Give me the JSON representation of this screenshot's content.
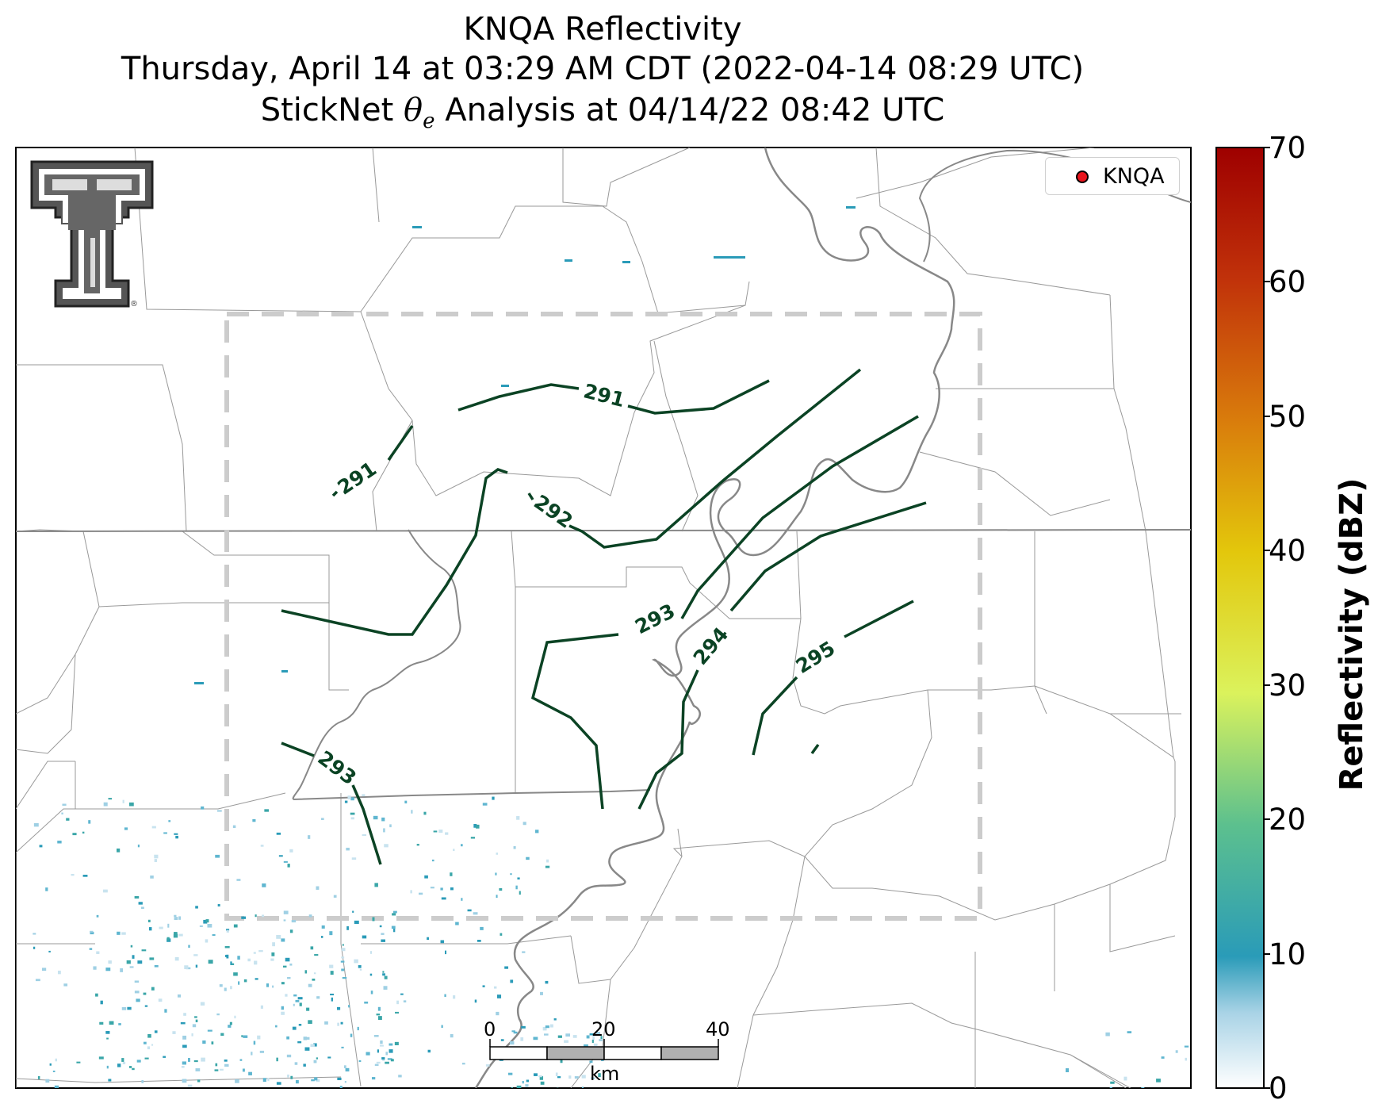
{
  "title": {
    "line1": "KNQA Reflectivity",
    "line2": "Thursday, April 14 at 03:29 AM CDT (2022-04-14 08:29 UTC)",
    "line3_prefix": "StickNet ",
    "line3_symbol": "θ",
    "line3_sub": "e",
    "line3_suffix": " Analysis at 04/14/22 08:42 UTC"
  },
  "legend": {
    "label": "KNQA",
    "marker_color": "#e8141c"
  },
  "colorbar": {
    "label": "Reflectivity (dBZ)",
    "min": 0,
    "max": 70,
    "ticks": [
      "70",
      "60",
      "50",
      "40",
      "30",
      "20",
      "10",
      "0"
    ],
    "colors": [
      "#ffffff",
      "#a9d3e6",
      "#2a9bb8",
      "#5cc08e",
      "#dbf25c",
      "#e3c70c",
      "#d97c0c",
      "#c1320a",
      "#9e0000"
    ]
  },
  "contours": {
    "color": "#0b4324",
    "labels": [
      "291",
      "291",
      "292",
      "293",
      "293",
      "294",
      "295"
    ]
  },
  "scale_bar": {
    "ticks": [
      "0",
      "20",
      "40"
    ],
    "unit": "km"
  },
  "logo": {
    "name": "Texas Tech double-T",
    "mark": "®"
  },
  "colors": {
    "boundary": "#999999",
    "river": "#888888",
    "state_line": "#888888",
    "analysis_box": "#cccccc"
  }
}
